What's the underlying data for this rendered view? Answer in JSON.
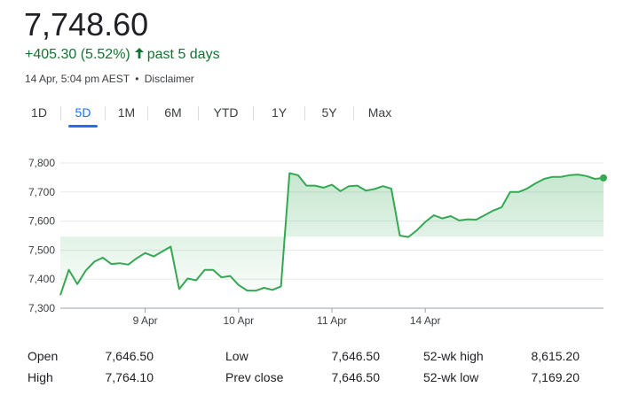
{
  "quote": {
    "price": "7,748.60",
    "change": "+405.30 (5.52%)",
    "period": "past 5 days",
    "timestamp": "14 Apr, 5:04 pm AEST",
    "separator": "•",
    "disclaimer": "Disclaimer"
  },
  "tabs": [
    {
      "label": "1D",
      "active": false
    },
    {
      "label": "5D",
      "active": true
    },
    {
      "label": "1M",
      "active": false
    },
    {
      "label": "6M",
      "active": false
    },
    {
      "label": "YTD",
      "active": false
    },
    {
      "label": "1Y",
      "active": false
    },
    {
      "label": "5Y",
      "active": false
    },
    {
      "label": "Max",
      "active": false
    }
  ],
  "colors": {
    "up": "#137333",
    "line": "#34a853",
    "accent": "#1a73e8",
    "grid": "#e8eaed"
  },
  "chart_data": {
    "type": "line",
    "title": "",
    "xlabel": "",
    "ylabel": "",
    "ylim": [
      7300,
      7800
    ],
    "yticks": [
      "7,300",
      "7,400",
      "7,500",
      "7,600",
      "7,700",
      "7,800"
    ],
    "ytick_values": [
      7300,
      7400,
      7500,
      7600,
      7700,
      7800
    ],
    "xtick_labels": [
      "9 Apr",
      "10 Apr",
      "11 Apr",
      "14 Apr"
    ],
    "xtick_index": [
      10,
      21,
      32,
      43
    ],
    "grid": true,
    "series": [
      {
        "values": [
          7345,
          7432,
          7383,
          7430,
          7460,
          7474,
          7452,
          7455,
          7450,
          7472,
          7490,
          7478,
          7495,
          7512,
          7366,
          7402,
          7396,
          7432,
          7432,
          7406,
          7411,
          7380,
          7361,
          7360,
          7370,
          7363,
          7375,
          7765,
          7758,
          7722,
          7722,
          7715,
          7725,
          7703,
          7720,
          7722,
          7705,
          7710,
          7720,
          7712,
          7550,
          7545,
          7568,
          7597,
          7620,
          7609,
          7617,
          7602,
          7606,
          7605,
          7620,
          7636,
          7648,
          7700,
          7700,
          7712,
          7730,
          7745,
          7752,
          7752,
          7758,
          7760,
          7755,
          7745,
          7748.6
        ]
      }
    ]
  },
  "stats": [
    {
      "label": "Open",
      "value": "7,646.50"
    },
    {
      "label": "High",
      "value": "7,764.10"
    },
    {
      "label": "Low",
      "value": "7,646.50"
    },
    {
      "label": "Prev close",
      "value": "7,646.50"
    },
    {
      "label": "52-wk high",
      "value": "8,615.20"
    },
    {
      "label": "52-wk low",
      "value": "7,169.20"
    }
  ]
}
